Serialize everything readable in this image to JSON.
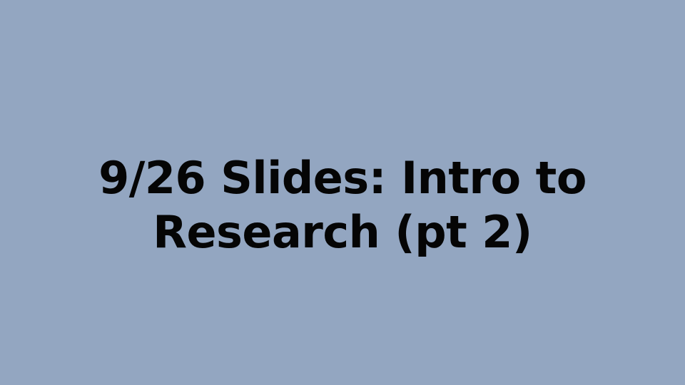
{
  "slide": {
    "background_color": "#93a6c1",
    "text_color": "#050505",
    "title_lines": [
      "9/26 Slides: Intro to",
      "Research (pt 2)"
    ]
  }
}
